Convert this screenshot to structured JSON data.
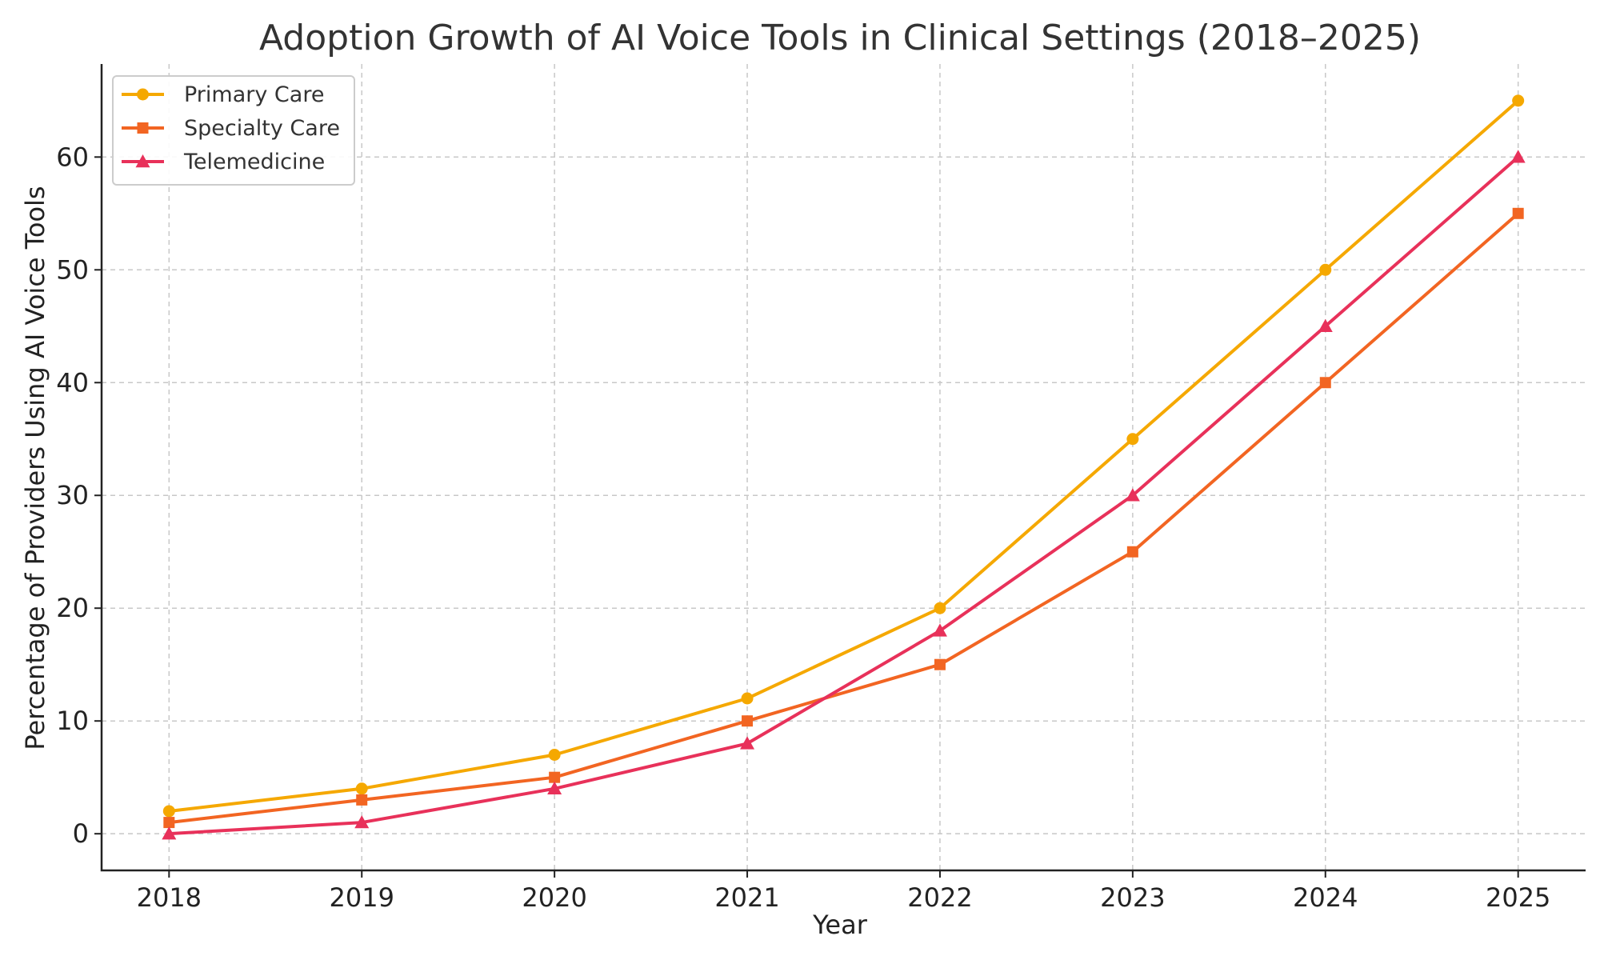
{
  "chart_data": {
    "type": "line",
    "title": "Adoption Growth of AI Voice Tools in Clinical Settings (2018–2025)",
    "xlabel": "Year",
    "ylabel": "Percentage of Providers Using AI Voice Tools",
    "x": [
      "2018",
      "2019",
      "2020",
      "2021",
      "2022",
      "2023",
      "2024",
      "2025"
    ],
    "xlim": [
      2017.65,
      2025.35
    ],
    "ylim": [
      -3.25,
      68.25
    ],
    "yticks": [
      0,
      10,
      20,
      30,
      40,
      50,
      60
    ],
    "grid": true,
    "legend_position": "top-left",
    "series": [
      {
        "name": "Primary Care",
        "marker": "circle",
        "color": "#F5A800",
        "values": [
          2,
          4,
          7,
          12,
          20,
          35,
          50,
          65
        ]
      },
      {
        "name": "Specialty Care",
        "marker": "square",
        "color": "#F26522",
        "values": [
          1,
          3,
          5,
          10,
          15,
          25,
          40,
          55
        ]
      },
      {
        "name": "Telemedicine",
        "marker": "triangle",
        "color": "#E8315A",
        "values": [
          0,
          1,
          4,
          8,
          18,
          30,
          45,
          60
        ]
      }
    ]
  }
}
